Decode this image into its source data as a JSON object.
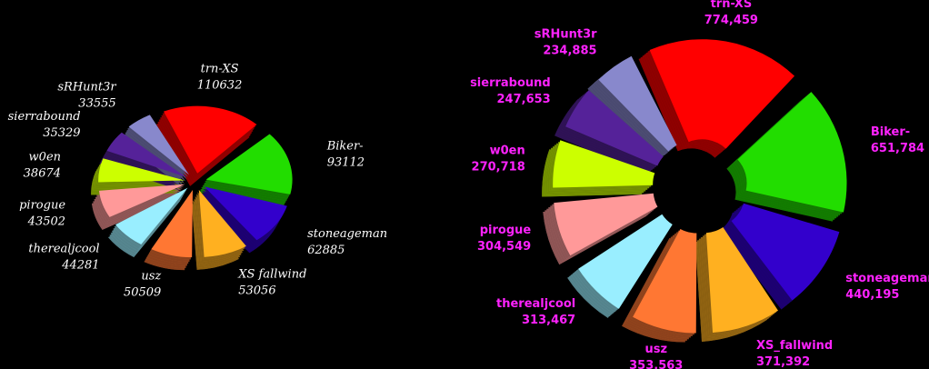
{
  "chart_data": [
    {
      "type": "pie",
      "categories": [
        "trn-XS",
        "Biker-",
        "stoneageman",
        "XS fallwind",
        "usz",
        "therealjcool",
        "pirogue",
        "w0en",
        "sierrabound",
        "sRHunt3r"
      ],
      "values": [
        110632,
        93112,
        62885,
        53056,
        50509,
        44281,
        43502,
        38674,
        35329,
        33555
      ],
      "colors": [
        "#ff0000",
        "#22dd00",
        "#3300cc",
        "#ffb020",
        "#ff7733",
        "#99eeff",
        "#ff9999",
        "#ccff00",
        "#552299",
        "#8888cc"
      ]
    },
    {
      "type": "pie",
      "categories": [
        "trn-XS",
        "Biker-",
        "stoneageman",
        "XS_fallwind",
        "usz",
        "therealjcool",
        "pirogue",
        "w0en",
        "sierrabound",
        "sRHunt3r"
      ],
      "values": [
        774459,
        651784,
        440195,
        371392,
        353563,
        313467,
        304549,
        270718,
        247653,
        234885
      ],
      "value_labels": [
        "774,459",
        "651,784",
        "440,195",
        "371,392",
        "353,563",
        "313,467",
        "304,549",
        "270,718",
        "247,653",
        "234,885"
      ],
      "colors": [
        "#ff0000",
        "#22dd00",
        "#3300cc",
        "#ffb020",
        "#ff7733",
        "#99eeff",
        "#ff9999",
        "#ccff00",
        "#552299",
        "#8888cc"
      ]
    }
  ]
}
